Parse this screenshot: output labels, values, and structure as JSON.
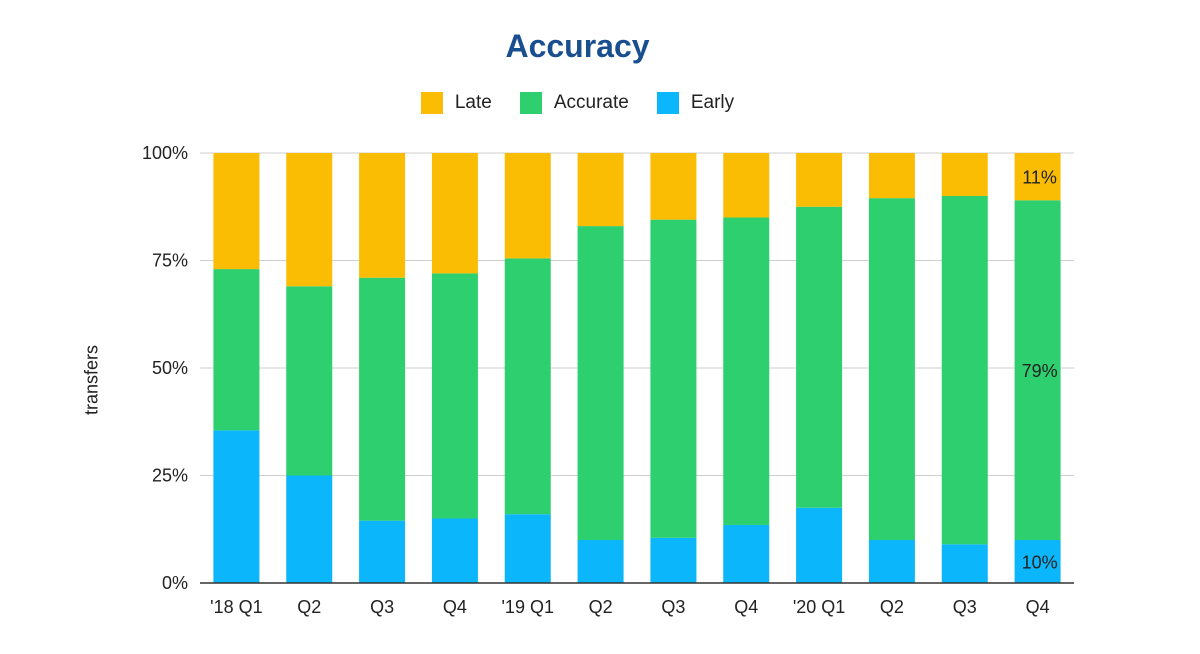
{
  "chart_data": {
    "type": "bar",
    "stacked": true,
    "normalized": true,
    "title": "Accuracy",
    "ylabel": "transfers",
    "xlabel": "",
    "ylim": [
      0,
      100
    ],
    "yticks": [
      "0%",
      "25%",
      "50%",
      "75%",
      "100%"
    ],
    "grid": true,
    "legend_position": "top",
    "categories": [
      "'18 Q1",
      "Q2",
      "Q3",
      "Q4",
      "'19 Q1",
      "Q2",
      "Q3",
      "Q4",
      "'20 Q1",
      "Q2",
      "Q3",
      "Q4"
    ],
    "series": [
      {
        "name": "Early",
        "color": "#0bb6fa",
        "values": [
          35.5,
          25,
          14.5,
          15,
          16,
          10,
          10.5,
          13.5,
          17.5,
          10,
          9,
          10
        ]
      },
      {
        "name": "Accurate",
        "color": "#2ecf6e",
        "values": [
          37.5,
          44,
          56.5,
          57,
          59.5,
          73,
          74,
          71.5,
          70,
          79.5,
          81,
          79
        ]
      },
      {
        "name": "Late",
        "color": "#fbbc04",
        "values": [
          27,
          31,
          29,
          28,
          24.5,
          17,
          15.5,
          15,
          12.5,
          10.5,
          10,
          11
        ]
      }
    ],
    "legend_order": [
      "Late",
      "Accurate",
      "Early"
    ],
    "data_labels": [
      {
        "category_index": 11,
        "series": "Late",
        "text": "11%"
      },
      {
        "category_index": 11,
        "series": "Accurate",
        "text": "79%"
      },
      {
        "category_index": 11,
        "series": "Early",
        "text": "10%"
      }
    ]
  }
}
